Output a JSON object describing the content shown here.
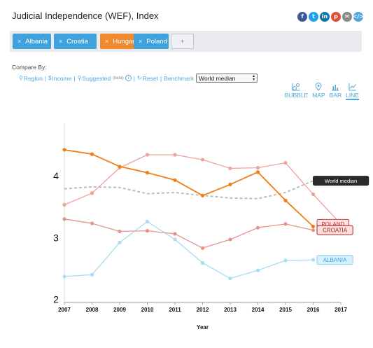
{
  "title": "Judicial Independence (WEF), Index",
  "share_icons": [
    {
      "name": "facebook-icon",
      "glyph": "f",
      "color": "#3b5998"
    },
    {
      "name": "twitter-icon",
      "glyph": "t",
      "color": "#1da1f2"
    },
    {
      "name": "linkedin-icon",
      "glyph": "in",
      "color": "#0e76a8"
    },
    {
      "name": "pdf-icon",
      "glyph": "p",
      "color": "#e04e39"
    },
    {
      "name": "email-icon",
      "glyph": "✉",
      "color": "#8a8a8a"
    },
    {
      "name": "embed-icon",
      "glyph": "</>",
      "color": "#4da7dd"
    }
  ],
  "chips": [
    {
      "label": "Albania",
      "color": "blue"
    },
    {
      "label": "Croatia",
      "color": "blue"
    },
    {
      "label": "Hungary",
      "color": "orange"
    },
    {
      "label": "Poland",
      "color": "blue"
    }
  ],
  "add_chip_label": "+",
  "chip_remove_glyph": "×",
  "compare": {
    "label": "Compare By:",
    "region": "Region",
    "income": "Income",
    "suggested": "Suggested",
    "beta": "(beta)",
    "info": "i",
    "reset": "Reset",
    "benchmark": "Benchmark",
    "benchmark_value": "World median"
  },
  "view_tabs": [
    {
      "label": "BUBBLE",
      "icon": "bubble-chart-icon",
      "active": false
    },
    {
      "label": "MAP",
      "icon": "map-pin-icon",
      "active": false
    },
    {
      "label": "BAR",
      "icon": "bar-chart-icon",
      "active": false
    },
    {
      "label": "LINE",
      "icon": "line-chart-icon",
      "active": true
    }
  ],
  "chart_data": {
    "type": "line",
    "xlabel": "Year",
    "ylabel": "",
    "x": [
      2007,
      2008,
      2009,
      2010,
      2011,
      2012,
      2013,
      2014,
      2015,
      2016,
      2017
    ],
    "xlim": [
      2007,
      2017
    ],
    "ylim": [
      1.95,
      4.85
    ],
    "yticks": [
      2,
      3,
      4
    ],
    "grid": false,
    "series": [
      {
        "name": "Hungary",
        "color": "#ef7d1a",
        "width": 1.8,
        "dash": false,
        "marker": true,
        "label": false,
        "x": [
          2007,
          2008,
          2009,
          2010,
          2011,
          2012,
          2013,
          2014,
          2015,
          2016
        ],
        "values": [
          4.42,
          4.35,
          4.15,
          4.05,
          3.93,
          3.68,
          3.86,
          4.06,
          3.6,
          3.18
        ]
      },
      {
        "name": "POLAND",
        "color": "#f2a19d",
        "width": 1.3,
        "dash": false,
        "marker": true,
        "label": true,
        "x": [
          2007,
          2008,
          2009,
          2010,
          2011,
          2012,
          2013,
          2014,
          2015,
          2016,
          2017
        ],
        "values": [
          3.53,
          3.72,
          4.13,
          4.34,
          4.34,
          4.26,
          4.12,
          4.13,
          4.21,
          3.7,
          3.22
        ]
      },
      {
        "name": "CROATIA",
        "color": "#e5938e",
        "width": 1.3,
        "dash": false,
        "marker": true,
        "label": true,
        "x": [
          2007,
          2008,
          2009,
          2010,
          2011,
          2012,
          2013,
          2014,
          2015,
          2016
        ],
        "values": [
          3.3,
          3.23,
          3.1,
          3.11,
          3.06,
          2.83,
          2.97,
          3.16,
          3.22,
          3.12
        ]
      },
      {
        "name": "ALBANIA",
        "color": "#a8dcf2",
        "width": 1.3,
        "dash": false,
        "marker": true,
        "label": true,
        "x": [
          2007,
          2008,
          2009,
          2010,
          2011,
          2012,
          2013,
          2014,
          2015,
          2016
        ],
        "values": [
          2.37,
          2.4,
          2.92,
          3.26,
          2.97,
          2.59,
          2.34,
          2.47,
          2.63,
          2.64
        ]
      },
      {
        "name": "World median",
        "color": "#bdbdbd",
        "width": 2,
        "dash": true,
        "marker": false,
        "label": true,
        "x": [
          2007,
          2008,
          2009,
          2010,
          2011,
          2012,
          2013,
          2014,
          2015,
          2016
        ],
        "values": [
          3.79,
          3.82,
          3.81,
          3.71,
          3.73,
          3.68,
          3.64,
          3.63,
          3.73,
          3.92
        ]
      }
    ],
    "labels": [
      {
        "text": "World median",
        "bg": "#2a2a2a",
        "fg": "#ffffff",
        "border": "#2a2a2a",
        "anchor_x": 2016,
        "anchor_y": 3.92
      },
      {
        "text": "POLAND",
        "bg": "#ffe1e1",
        "fg": "#d02b2b",
        "border": "#d53d3d",
        "anchor_x": 2017,
        "anchor_y": 3.22
      },
      {
        "text": "CROATIA",
        "bg": "#ffdede",
        "fg": "#9b2424",
        "border": "#9b2424",
        "anchor_x": 2016,
        "anchor_y": 3.12
      },
      {
        "text": "ALBANIA",
        "bg": "#d9f1fc",
        "fg": "#3fa2dc",
        "border": "#8ccfee",
        "anchor_x": 2016,
        "anchor_y": 2.64
      }
    ]
  }
}
